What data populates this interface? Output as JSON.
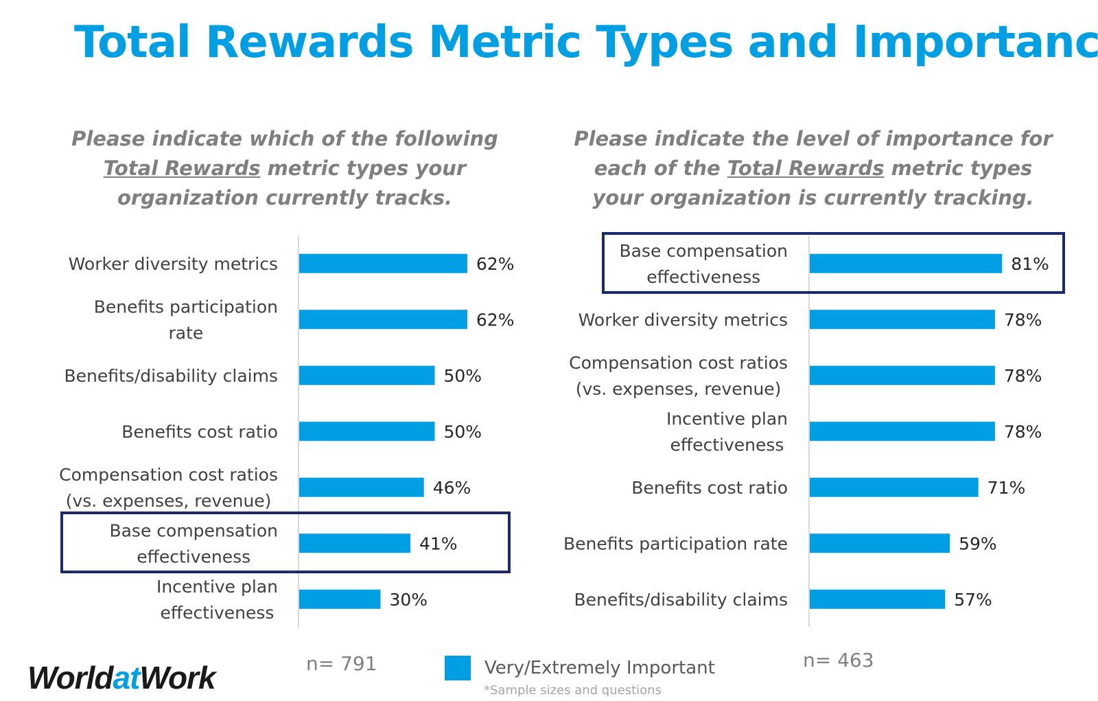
{
  "title": "Total Rewards Metric Types and Importance",
  "questions": {
    "left": {
      "pre": "Please indicate which of the following ",
      "underline": "Total Rewards",
      "post": " metric types your organization currently tracks."
    },
    "right": {
      "pre": "Please indicate the level of importance for each of the ",
      "underline": "Total Rewards",
      "post": " metric types your organization is currently tracking."
    }
  },
  "notes": {
    "n_left": "n= 791",
    "n_right": "n= 463"
  },
  "legend": {
    "label": "Very/Extremely Important",
    "footnote": "*Sample sizes and questions"
  },
  "logo": {
    "part1": "World",
    "part2": "at",
    "part3": "Work"
  },
  "colors": {
    "bar": "#009ee3",
    "title": "#009ee3",
    "highlight_box": "#1a2a6c",
    "axis": "#d9d9d9"
  },
  "chart_data": [
    {
      "type": "bar",
      "orientation": "horizontal",
      "categories": [
        [
          "Worker diversity metrics"
        ],
        [
          "Benefits participation",
          "rate"
        ],
        [
          "Benefits/disability claims"
        ],
        [
          "Benefits cost ratio"
        ],
        [
          "Compensation cost ratios",
          "(vs. expenses, revenue)"
        ],
        [
          "Base compensation",
          "effectiveness"
        ],
        [
          "Incentive plan",
          "effectiveness"
        ]
      ],
      "values": [
        62,
        62,
        50,
        50,
        46,
        41,
        30
      ],
      "value_labels": [
        "62%",
        "62%",
        "50%",
        "50%",
        "46%",
        "41%",
        "30%"
      ],
      "unit": "%",
      "highlighted_index": 5
    },
    {
      "type": "bar",
      "orientation": "horizontal",
      "categories": [
        [
          "Base compensation",
          "effectiveness"
        ],
        [
          "Worker diversity metrics"
        ],
        [
          "Compensation cost ratios",
          "(vs. expenses, revenue)"
        ],
        [
          "Incentive plan",
          "effectiveness"
        ],
        [
          "Benefits cost ratio"
        ],
        [
          "Benefits participation rate"
        ],
        [
          "Benefits/disability claims"
        ]
      ],
      "values": [
        81,
        78,
        78,
        78,
        71,
        59,
        57
      ],
      "value_labels": [
        "81%",
        "78%",
        "78%",
        "78%",
        "71%",
        "59%",
        "57%"
      ],
      "unit": "%",
      "highlighted_index": 0
    }
  ]
}
